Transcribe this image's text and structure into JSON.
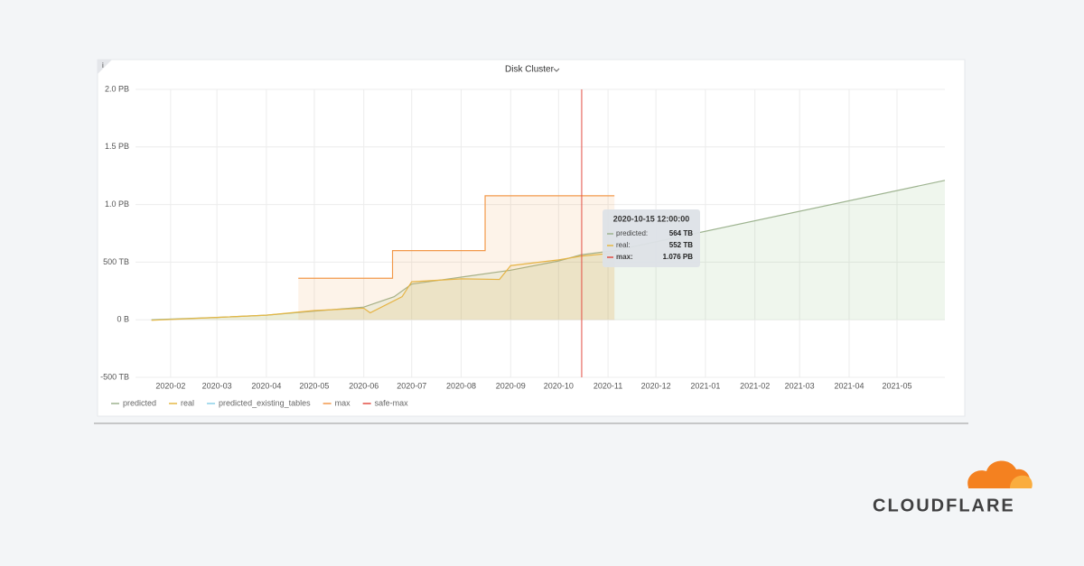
{
  "chart_data": {
    "type": "line",
    "title": "Disk Cluster",
    "info": "i",
    "xlim": [
      "2020-01-10",
      "2021-05-31"
    ],
    "xticks": [
      "2020-02",
      "2020-03",
      "2020-04",
      "2020-05",
      "2020-06",
      "2020-07",
      "2020-08",
      "2020-09",
      "2020-10",
      "2020-11",
      "2020-12",
      "2021-01",
      "2021-02",
      "2021-03",
      "2021-04",
      "2021-05"
    ],
    "ylim": [
      -500,
      2000
    ],
    "yticks": [
      {
        "value": -500,
        "label": "-500 TB"
      },
      {
        "value": 0,
        "label": "0 B"
      },
      {
        "value": 500,
        "label": "500 TB"
      },
      {
        "value": 1000,
        "label": "1.0 PB"
      },
      {
        "value": 1500,
        "label": "1.5 PB"
      },
      {
        "value": 2000,
        "label": "2.0 PB"
      }
    ],
    "grid": true,
    "series": [
      {
        "name": "predicted",
        "color": "#9db38f",
        "fill": "#7eb26d",
        "step": false,
        "x": [
          "2020-01-20",
          "2020-03-01",
          "2020-04-01",
          "2020-05-01",
          "2020-06-01",
          "2020-06-20",
          "2020-07-01",
          "2020-08-01",
          "2020-09-01",
          "2020-10-01",
          "2020-10-15",
          "2020-11-05",
          "2021-05-31"
        ],
        "values": [
          0,
          20,
          40,
          75,
          110,
          200,
          310,
          370,
          430,
          510,
          564,
          600,
          1210
        ]
      },
      {
        "name": "real",
        "color": "#e5b845",
        "fill": "#d9a93e",
        "step": false,
        "x": [
          "2020-01-20",
          "2020-03-01",
          "2020-04-01",
          "2020-05-01",
          "2020-06-01",
          "2020-06-05",
          "2020-06-25",
          "2020-07-01",
          "2020-08-01",
          "2020-08-25",
          "2020-09-01",
          "2020-10-01",
          "2020-10-15",
          "2020-11-05"
        ],
        "values": [
          -5,
          20,
          40,
          80,
          100,
          60,
          200,
          330,
          355,
          350,
          470,
          520,
          552,
          580
        ]
      },
      {
        "name": "predicted_existing_tables",
        "color": "#8ad0e8",
        "fill": null,
        "step": false,
        "x": [],
        "values": []
      },
      {
        "name": "max",
        "color": "#f2994a",
        "fill": "#f2994a",
        "step": true,
        "x": [
          "2020-04-21",
          "2020-06-19",
          "2020-08-16",
          "2020-11-05"
        ],
        "values": [
          360,
          600,
          1076,
          1076
        ]
      },
      {
        "name": "safe-max",
        "color": "#e24d42",
        "fill": null,
        "step": false,
        "x": [],
        "values": []
      }
    ],
    "tooltip": {
      "time": "2020-10-15 12:00:00",
      "items": [
        {
          "name": "predicted:",
          "value_label": "564 TB",
          "color": "#9db38f"
        },
        {
          "name": "real:",
          "value_label": "552 TB",
          "color": "#e5b845"
        },
        {
          "name": "max:",
          "value_label": "1.076 PB",
          "color": "#e24d42"
        }
      ]
    },
    "brand": "CLOUDFLARE"
  }
}
